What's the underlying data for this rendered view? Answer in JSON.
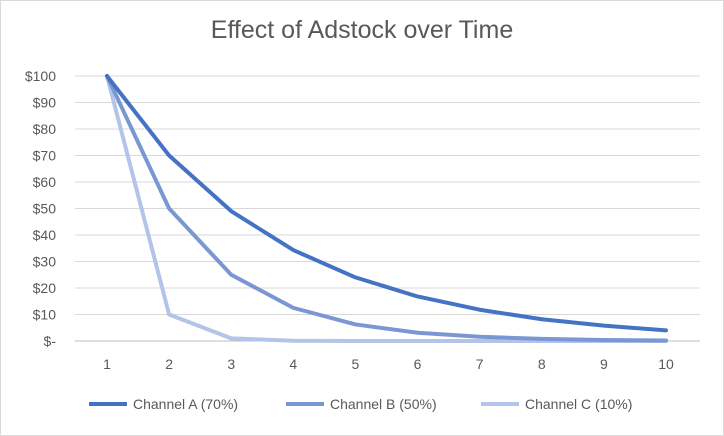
{
  "chart_data": {
    "type": "line",
    "title": "Effect of Adstock over Time",
    "xlabel": "",
    "ylabel": "",
    "categories": [
      "1",
      "2",
      "3",
      "4",
      "5",
      "6",
      "7",
      "8",
      "9",
      "10"
    ],
    "y_tick_labels": [
      "$-",
      "$10",
      "$20",
      "$30",
      "$40",
      "$50",
      "$60",
      "$70",
      "$80",
      "$90",
      "$100"
    ],
    "ylim": [
      0,
      100
    ],
    "grid": true,
    "legend_position": "bottom",
    "series": [
      {
        "name": "Channel A (70%)",
        "color": "#4472c4",
        "values": [
          100,
          70,
          49,
          34.3,
          24.0,
          16.8,
          11.8,
          8.2,
          5.8,
          4.0
        ]
      },
      {
        "name": "Channel B (50%)",
        "color": "#7a97d4",
        "values": [
          100,
          50,
          25,
          12.5,
          6.25,
          3.1,
          1.6,
          0.8,
          0.4,
          0.2
        ]
      },
      {
        "name": "Channel C (10%)",
        "color": "#b4c3e8",
        "values": [
          100,
          10,
          1,
          0.1,
          0.01,
          0.001,
          0,
          0,
          0,
          0
        ]
      }
    ]
  }
}
